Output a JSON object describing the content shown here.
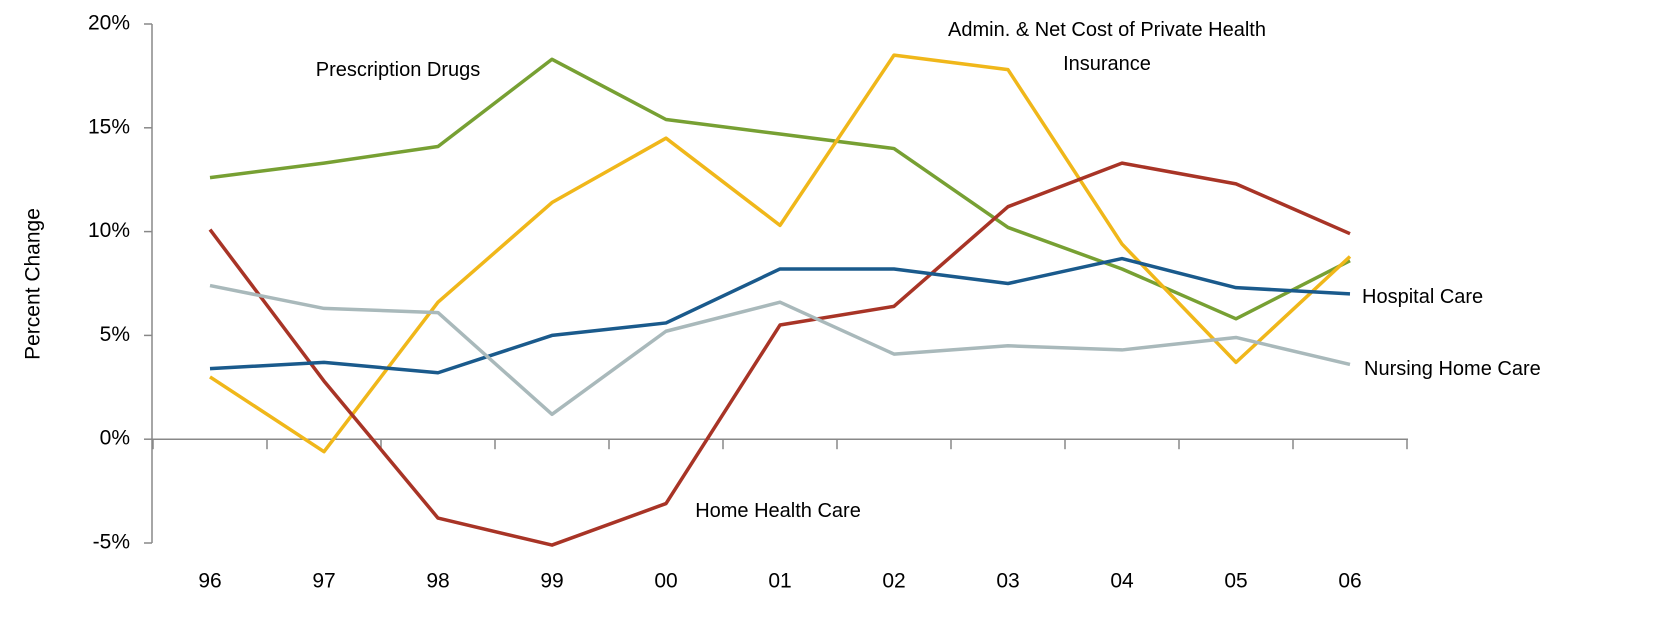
{
  "chart_data": {
    "type": "line",
    "y_label": "Percent Change",
    "categories": [
      "96",
      "97",
      "98",
      "99",
      "00",
      "01",
      "02",
      "03",
      "04",
      "05",
      "06"
    ],
    "series": [
      {
        "name": "Prescription Drugs",
        "color": "#77a033",
        "values": [
          12.6,
          13.3,
          14.1,
          18.3,
          15.4,
          14.7,
          14.0,
          10.2,
          8.2,
          5.8,
          8.6
        ]
      },
      {
        "name": "Admin. & Net Cost of Private Health Insurance",
        "color": "#f0b71a",
        "values": [
          3.0,
          -0.6,
          6.6,
          11.4,
          14.5,
          10.3,
          18.5,
          17.8,
          9.4,
          3.7,
          8.8
        ]
      },
      {
        "name": "Home Health Care",
        "color": "#a83426",
        "values": [
          10.1,
          2.8,
          -3.8,
          -5.1,
          -3.1,
          5.5,
          6.4,
          11.2,
          13.3,
          12.3,
          9.9
        ]
      },
      {
        "name": "Hospital Care",
        "color": "#1a5a8c",
        "values": [
          3.4,
          3.7,
          3.2,
          5.0,
          5.6,
          8.2,
          8.2,
          7.5,
          8.7,
          7.3,
          7.0
        ]
      },
      {
        "name": "Nursing Home Care",
        "color": "#a9b9bb",
        "values": [
          7.4,
          6.3,
          6.1,
          1.2,
          5.2,
          6.6,
          4.1,
          4.5,
          4.3,
          4.9,
          3.6
        ]
      }
    ],
    "ylim": [
      -5,
      20
    ],
    "yticks": [
      {
        "value": -5,
        "label": "-5%"
      },
      {
        "value": 0,
        "label": "0%"
      },
      {
        "value": 5,
        "label": "5%"
      },
      {
        "value": 10,
        "label": "10%"
      },
      {
        "value": 15,
        "label": "15%"
      },
      {
        "value": 20,
        "label": "20%"
      }
    ]
  }
}
